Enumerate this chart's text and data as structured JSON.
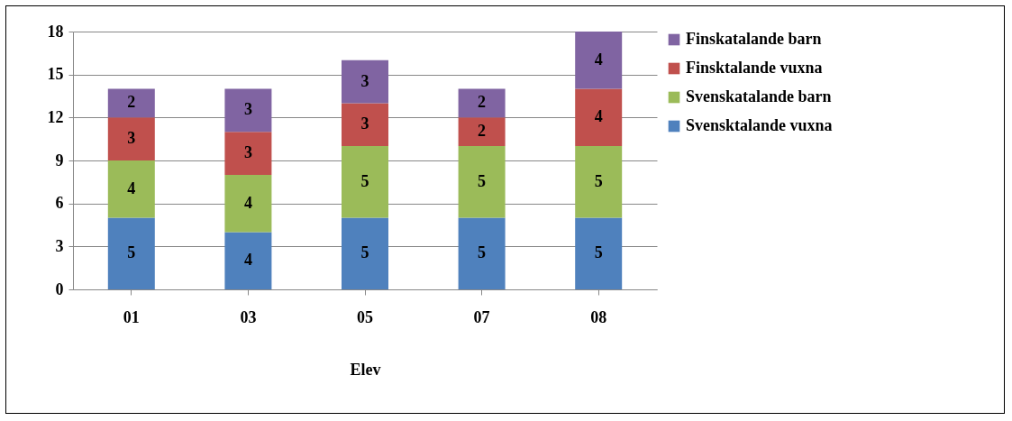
{
  "chart_data": {
    "type": "bar",
    "stacked": true,
    "xlabel": "Elev",
    "categories": [
      "01",
      "03",
      "05",
      "07",
      "08"
    ],
    "series": [
      {
        "name": "Svensktalande vuxna",
        "color": "#4f81bd",
        "values": [
          5,
          4,
          5,
          5,
          5
        ]
      },
      {
        "name": "Svenskatalande barn",
        "color": "#9bbb59",
        "values": [
          4,
          4,
          5,
          5,
          5
        ]
      },
      {
        "name": "Finsktalande vuxna",
        "color": "#c0504d",
        "values": [
          3,
          3,
          3,
          2,
          4
        ]
      },
      {
        "name": "Finskatalande barn",
        "color": "#8064a2",
        "values": [
          2,
          3,
          3,
          2,
          4
        ]
      }
    ],
    "ylim": [
      0,
      18
    ],
    "yticks": [
      0,
      3,
      6,
      9,
      12,
      15,
      18
    ],
    "grid": "y",
    "legend": "right",
    "data_labels": true
  }
}
